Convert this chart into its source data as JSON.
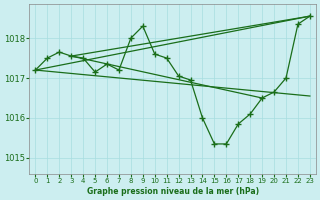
{
  "title": "Graphe pression niveau de la mer (hPa)",
  "bg_color": "#cceef0",
  "line_color": "#1a6e1a",
  "grid_color": "#a8dde0",
  "xlim": [
    -0.5,
    23.5
  ],
  "ylim": [
    1014.6,
    1018.85
  ],
  "yticks": [
    1015,
    1016,
    1017,
    1018
  ],
  "xticks": [
    0,
    1,
    2,
    3,
    4,
    5,
    6,
    7,
    8,
    9,
    10,
    11,
    12,
    13,
    14,
    15,
    16,
    17,
    18,
    19,
    20,
    21,
    22,
    23
  ],
  "main_x": [
    0,
    1,
    2,
    3,
    4,
    5,
    6,
    7,
    8,
    9,
    10,
    11,
    12,
    13,
    14,
    15,
    16,
    17,
    18,
    19,
    20,
    21,
    22,
    23
  ],
  "main_y": [
    1017.2,
    1017.5,
    1017.65,
    1017.55,
    1017.5,
    1017.15,
    1017.35,
    1017.2,
    1018.0,
    1018.3,
    1017.6,
    1017.5,
    1017.05,
    1016.95,
    1016.0,
    1015.35,
    1015.35,
    1015.85,
    1016.1,
    1016.5,
    1016.65,
    1017.0,
    1018.35,
    1018.55
  ],
  "line2_x": [
    0,
    23
  ],
  "line2_y": [
    1017.2,
    1018.55
  ],
  "line3_x": [
    0,
    23
  ],
  "line3_y": [
    1017.2,
    1016.55
  ],
  "line4_x": [
    3,
    23
  ],
  "line4_y": [
    1017.55,
    1018.55
  ],
  "line5_x": [
    3,
    19
  ],
  "line5_y": [
    1017.55,
    1016.5
  ]
}
